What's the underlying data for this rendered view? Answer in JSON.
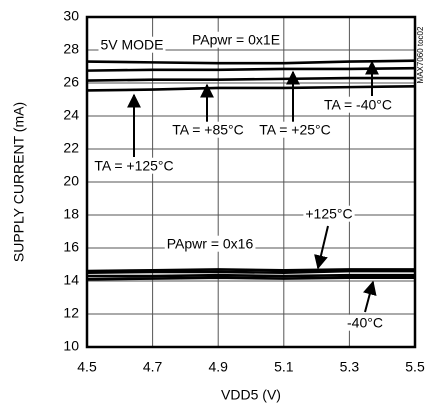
{
  "chart_data": {
    "type": "line",
    "xlabel": "VDD5 (V)",
    "ylabel": "SUPPLY CURRENT (mA)",
    "xlim": [
      4.5,
      5.5
    ],
    "ylim": [
      10,
      30
    ],
    "xticks": [
      4.5,
      4.7,
      4.9,
      5.1,
      5.3,
      5.5
    ],
    "yticks": [
      10,
      12,
      14,
      16,
      18,
      20,
      22,
      24,
      26,
      28,
      30
    ],
    "grid": true,
    "x": [
      4.5,
      4.7,
      4.9,
      5.1,
      5.3,
      5.5
    ],
    "series": [
      {
        "name": "TA = -40°C",
        "color": "#000000",
        "values": [
          27.3,
          27.25,
          27.2,
          27.2,
          27.3,
          27.35
        ]
      },
      {
        "name": "TA = +25°C",
        "color": "#000000",
        "values": [
          26.75,
          26.8,
          26.8,
          26.85,
          26.85,
          26.9
        ]
      },
      {
        "name": "TA = +85°C",
        "color": "#000000",
        "values": [
          26.15,
          26.2,
          26.2,
          26.25,
          26.3,
          26.3
        ]
      },
      {
        "name": "TA = +125°C",
        "color": "#000000",
        "values": [
          25.55,
          25.6,
          25.7,
          25.7,
          25.75,
          25.8
        ]
      },
      {
        "name": "+125°C",
        "color": "#000000",
        "values": [
          14.6,
          14.65,
          14.7,
          14.65,
          14.7,
          14.7
        ]
      },
      {
        "color": "#000000",
        "values": [
          14.5,
          14.55,
          14.55,
          14.5,
          14.6,
          14.6
        ]
      },
      {
        "color": "#000000",
        "values": [
          14.3,
          14.3,
          14.35,
          14.3,
          14.35,
          14.35
        ]
      },
      {
        "name": "-40°C",
        "color": "#000000",
        "values": [
          14.1,
          14.15,
          14.2,
          14.15,
          14.2,
          14.2
        ]
      }
    ],
    "annotations": [
      "5V MODE",
      "PApwr = 0x1E",
      "PApwr = 0x16",
      "MAX7060 toc02"
    ]
  }
}
